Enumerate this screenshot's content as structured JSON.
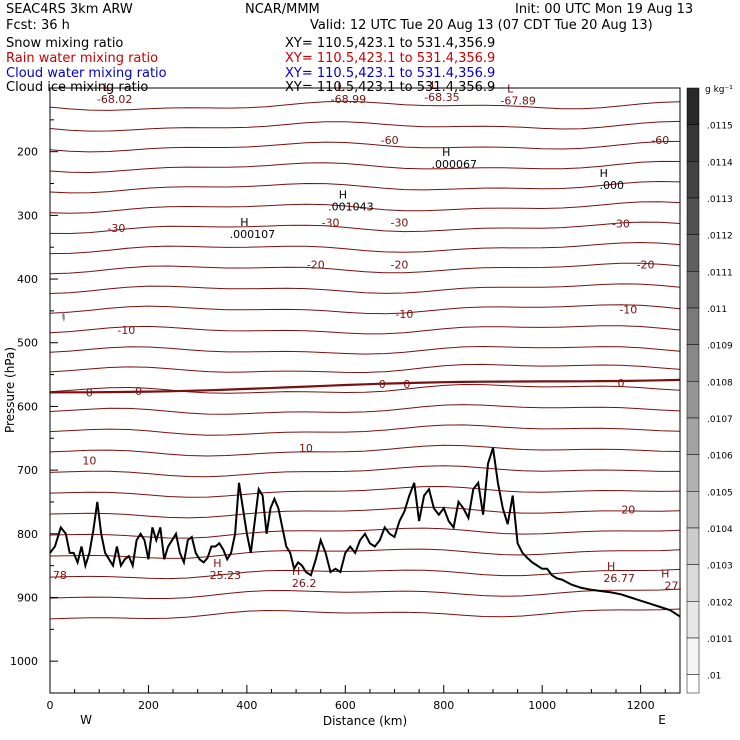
{
  "header": {
    "experiment": "SEAC4RS  3km ARW",
    "center": "NCAR/MMM",
    "init": "Init: 00 UTC Mon 19 Aug 13",
    "fcst": "Fcst:   36 h",
    "valid": "Valid: 12 UTC Tue 20 Aug 13 (07 CDT Tue 20 Aug 13)"
  },
  "fields": [
    {
      "name": "Snow mixing ratio",
      "xy": "XY= 110.5,423.1 to 531.4,356.9",
      "color": "#000000"
    },
    {
      "name": "Rain water mixing ratio",
      "xy": "XY= 110.5,423.1 to 531.4,356.9",
      "color": "#cc0000"
    },
    {
      "name": "Cloud water mixing ratio",
      "xy": "XY= 110.5,423.1 to 531.4,356.9",
      "color": "#0000cc"
    },
    {
      "name": "Cloud ice mixing ratio",
      "xy": "XY= 110.5,423.1 to 531.4,356.9",
      "color": "#000000"
    }
  ],
  "colors": {
    "isotherm": "#7a1010",
    "terrain": "#000000",
    "axis": "#000000"
  },
  "chart_data": {
    "type": "line",
    "xlabel": "Distance (km)",
    "ylabel": "Pressure (hPa)",
    "xlim": [
      0,
      1280
    ],
    "ylim": [
      1050,
      100
    ],
    "x_ticks": [
      0,
      200,
      400,
      600,
      800,
      1000,
      1200
    ],
    "y_ticks": [
      200,
      300,
      400,
      500,
      600,
      700,
      800,
      900,
      1000
    ],
    "left_end_label": "W",
    "right_end_label": "E",
    "colorbar": {
      "unit": "g kg⁻¹",
      "levels": [
        ".0115",
        ".0114",
        ".0113",
        ".0112",
        ".0111",
        ".011",
        ".0109",
        ".0108",
        ".0107",
        ".0106",
        ".0105",
        ".0104",
        ".0103",
        ".0102",
        ".0101",
        ".01"
      ]
    },
    "isotherms": [
      {
        "value": -60,
        "labels": [
          {
            "x": 690,
            "p": 182,
            "text": "-60"
          },
          {
            "x": 1240,
            "p": 182,
            "text": "-60"
          }
        ]
      },
      {
        "value": -30,
        "labels": [
          {
            "x": 135,
            "p": 320,
            "text": "-30"
          },
          {
            "x": 570,
            "p": 311,
            "text": "-30"
          },
          {
            "x": 710,
            "p": 311,
            "text": "-30"
          },
          {
            "x": 1160,
            "p": 313,
            "text": "-30"
          }
        ]
      },
      {
        "value": -20,
        "labels": [
          {
            "x": 540,
            "p": 377,
            "text": "-20"
          },
          {
            "x": 710,
            "p": 377,
            "text": "-20"
          },
          {
            "x": 1210,
            "p": 377,
            "text": "-20"
          }
        ]
      },
      {
        "value": -10,
        "labels": [
          {
            "x": 155,
            "p": 480,
            "text": "-10"
          },
          {
            "x": 720,
            "p": 455,
            "text": "-10"
          },
          {
            "x": 1175,
            "p": 448,
            "text": "-10"
          }
        ]
      },
      {
        "value": 0,
        "labels": [
          {
            "x": 80,
            "p": 578,
            "text": "0"
          },
          {
            "x": 180,
            "p": 576,
            "text": "0"
          },
          {
            "x": 675,
            "p": 565,
            "text": "0"
          },
          {
            "x": 725,
            "p": 565,
            "text": "0"
          },
          {
            "x": 1160,
            "p": 563,
            "text": "0"
          }
        ]
      },
      {
        "value": 10,
        "labels": [
          {
            "x": 80,
            "p": 685,
            "text": "10"
          },
          {
            "x": 520,
            "p": 665,
            "text": "10"
          }
        ]
      },
      {
        "value": 20,
        "labels": [
          {
            "x": 1175,
            "p": 762,
            "text": "20"
          }
        ]
      }
    ],
    "extrema": [
      {
        "type": "L",
        "x": 115,
        "p": 108,
        "value": "-68.02"
      },
      {
        "type": "L",
        "x": 590,
        "p": 108,
        "value": "-68.99"
      },
      {
        "type": "L",
        "x": 780,
        "p": 105,
        "value": "-68.35"
      },
      {
        "type": "L",
        "x": 935,
        "p": 110,
        "value": "-67.89"
      },
      {
        "type": "H",
        "x": 805,
        "p": 210,
        "value": ".000067"
      },
      {
        "type": "H",
        "x": 1125,
        "p": 243,
        "value": ".000"
      },
      {
        "type": "H",
        "x": 595,
        "p": 277,
        "value": ".001043"
      },
      {
        "type": "H",
        "x": 395,
        "p": 320,
        "value": ".000107"
      },
      {
        "type": "H",
        "x": 340,
        "p": 855,
        "value": "25.23"
      },
      {
        "type": "H",
        "x": 500,
        "p": 868,
        "value": "26.2"
      },
      {
        "type": "H",
        "x": 1140,
        "p": 860,
        "value": "26.77"
      },
      {
        "type": "H",
        "x": 1250,
        "p": 872,
        "value": "27."
      },
      {
        "type": "",
        "x": 20,
        "p": 855,
        "value": "78"
      }
    ],
    "terrain": {
      "x": [
        0,
        10,
        22,
        32,
        40,
        48,
        56,
        64,
        72,
        80,
        88,
        96,
        104,
        112,
        120,
        128,
        136,
        144,
        152,
        160,
        168,
        176,
        184,
        192,
        200,
        208,
        216,
        224,
        232,
        240,
        248,
        256,
        264,
        272,
        280,
        288,
        296,
        304,
        312,
        320,
        328,
        336,
        344,
        352,
        360,
        368,
        376,
        384,
        392,
        400,
        408,
        416,
        424,
        432,
        440,
        448,
        456,
        464,
        472,
        480,
        488,
        496,
        504,
        512,
        520,
        530,
        540,
        550,
        560,
        570,
        580,
        590,
        600,
        610,
        620,
        630,
        640,
        650,
        660,
        670,
        680,
        690,
        700,
        710,
        720,
        730,
        740,
        750,
        760,
        770,
        780,
        790,
        800,
        810,
        820,
        830,
        840,
        850,
        860,
        870,
        880,
        890,
        900,
        910,
        920,
        930,
        940,
        950,
        960,
        970,
        980,
        990,
        1000,
        1010,
        1020,
        1030,
        1040,
        1060,
        1080,
        1100,
        1120,
        1140,
        1160,
        1180,
        1200,
        1220,
        1240,
        1260,
        1280
      ],
      "p": [
        830,
        820,
        790,
        800,
        830,
        830,
        845,
        820,
        850,
        830,
        795,
        750,
        800,
        830,
        840,
        850,
        820,
        850,
        840,
        835,
        850,
        810,
        800,
        810,
        840,
        790,
        810,
        790,
        840,
        820,
        810,
        800,
        830,
        845,
        810,
        805,
        830,
        840,
        845,
        838,
        820,
        820,
        815,
        825,
        840,
        830,
        800,
        720,
        760,
        800,
        830,
        780,
        730,
        740,
        800,
        760,
        745,
        760,
        790,
        820,
        830,
        855,
        845,
        850,
        860,
        865,
        840,
        810,
        830,
        860,
        855,
        860,
        830,
        820,
        830,
        810,
        800,
        815,
        820,
        810,
        790,
        800,
        805,
        780,
        765,
        740,
        720,
        780,
        740,
        730,
        760,
        770,
        760,
        780,
        790,
        750,
        760,
        775,
        730,
        720,
        770,
        690,
        665,
        720,
        760,
        785,
        740,
        815,
        830,
        838,
        845,
        850,
        855,
        855,
        865,
        870,
        872,
        880,
        885,
        888,
        890,
        892,
        895,
        900,
        905,
        910,
        915,
        920,
        930
      ]
    }
  }
}
